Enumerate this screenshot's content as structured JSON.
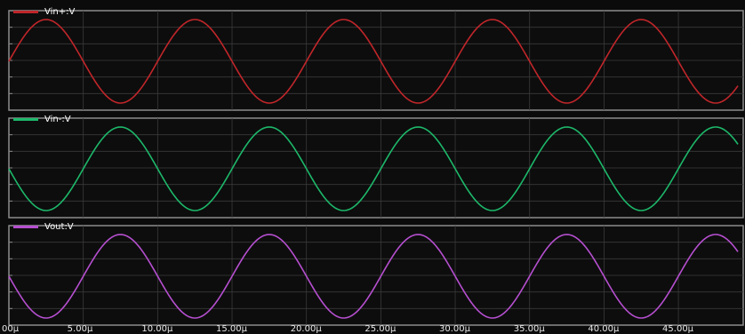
{
  "chart_data": [
    {
      "type": "line",
      "series": [
        {
          "name": "Vin+:V",
          "color": "#c0262a",
          "phase": "sine",
          "period": 10,
          "cycles_visible": 4.9
        }
      ],
      "x_unit": "µ",
      "xlim": [
        0,
        49
      ],
      "grid": true,
      "legend_position": "top-left"
    },
    {
      "type": "line",
      "series": [
        {
          "name": "Vin-:V",
          "color": "#1db86a",
          "phase": "negative sine",
          "period": 10,
          "cycles_visible": 4.9
        }
      ],
      "x_unit": "µ",
      "xlim": [
        0,
        49
      ],
      "grid": true,
      "legend_position": "top-left"
    },
    {
      "type": "line",
      "series": [
        {
          "name": "Vout:V",
          "color": "#b64fd0",
          "phase": "negative sine",
          "period": 10,
          "cycles_visible": 4.9
        }
      ],
      "x_unit": "µ",
      "xlim": [
        0,
        49
      ],
      "grid": true,
      "legend_position": "top-left",
      "x_tick_labels": [
        "00µ",
        "5.00µ",
        "10.00µ",
        "15.00µ",
        "20.00µ",
        "25.00µ",
        "30.00µ",
        "35.00µ",
        "40.00µ",
        "45.00µ"
      ],
      "x_ticks": [
        0,
        5,
        10,
        15,
        20,
        25,
        30,
        35,
        40,
        45
      ]
    }
  ]
}
